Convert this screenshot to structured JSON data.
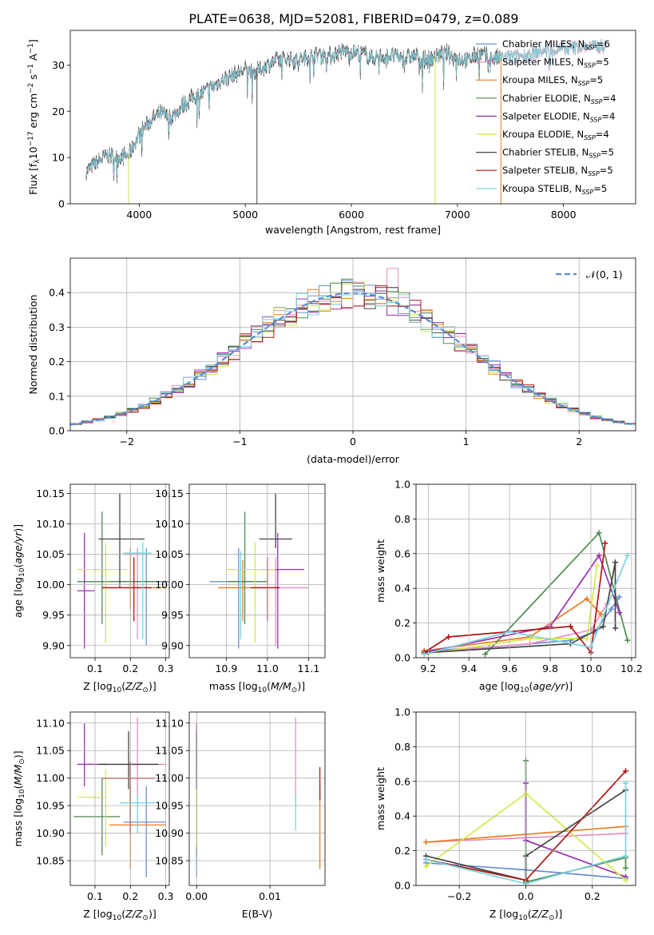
{
  "title": "PLATE=0638, MJD=52081, FIBERID=0479, z=0.089",
  "colors": {
    "ChMI": "#6a8fd6",
    "SaMI": "#e88fbf",
    "KrMI": "#e67e22",
    "ChEL": "#4d8a4d",
    "SaEL": "#9b2fb0",
    "KrEL": "#d6e84a",
    "ChST": "#444444",
    "SaST": "#b01515",
    "KrST": "#7ad5e0",
    "gauss": "#5b8ad8"
  },
  "chart_data": [
    {
      "id": "spectrum",
      "type": "line",
      "xlabel": "wavelength [Angstrom, rest frame]",
      "xlim": [
        3350,
        8680
      ],
      "ylim": [
        0,
        37.5
      ],
      "xticks": [
        4000,
        5000,
        6000,
        7000,
        8000
      ],
      "yticks": [
        0,
        10,
        20,
        30
      ],
      "observed_continuum": {
        "x": [
          3500,
          3600,
          3700,
          3800,
          3900,
          4000,
          4100,
          4200,
          4300,
          4400,
          4500,
          4600,
          4700,
          4800,
          4900,
          5000,
          5100,
          5200,
          5300,
          5400,
          5500,
          5600,
          5700,
          5800,
          5900,
          6000,
          6100,
          6200,
          6300,
          6400,
          6500,
          6600,
          6700,
          6800,
          6900,
          7000,
          7100,
          7200,
          7300,
          7400,
          7600,
          7800,
          8000,
          8200,
          8400
        ],
        "y": [
          7,
          9,
          10.5,
          10,
          10.5,
          15,
          18,
          19.5,
          18.5,
          21,
          23,
          24,
          25.5,
          27,
          28,
          29,
          28.5,
          30,
          31,
          31.5,
          31,
          32,
          32.5,
          32,
          33,
          33,
          32.5,
          31.5,
          32,
          32,
          31.5,
          32,
          31,
          32,
          32.5,
          31.5,
          31,
          32.5,
          31.5,
          31.5,
          32,
          33,
          33.5,
          34,
          34
        ]
      },
      "legend": [
        {
          "key": "ChMI",
          "label": "Chabrier MILES, N",
          "n": "6"
        },
        {
          "key": "SaMI",
          "label": "Salpeter MILES, N",
          "n": "5"
        },
        {
          "key": "KrMI",
          "label": "Kroupa MILES, N",
          "n": "5"
        },
        {
          "key": "ChEL",
          "label": "Chabrier ELODIE, N",
          "n": "4"
        },
        {
          "key": "SaEL",
          "label": "Salpeter ELODIE, N",
          "n": "4"
        },
        {
          "key": "KrEL",
          "label": "Kroupa ELODIE, N",
          "n": "4"
        },
        {
          "key": "ChST",
          "label": "Chabrier STELIB, N",
          "n": "5"
        },
        {
          "key": "SaST",
          "label": "Salpeter STELIB, N",
          "n": "5"
        },
        {
          "key": "KrST",
          "label": "Kroupa STELIB, N",
          "n": "5"
        }
      ]
    },
    {
      "id": "residuals",
      "type": "histogram",
      "xlabel": "(data-model)/error",
      "ylabel": "Normed distribution",
      "xlim": [
        -2.5,
        2.5
      ],
      "ylim": [
        0,
        0.5
      ],
      "xticks": [
        -2,
        -1,
        0,
        1,
        2
      ],
      "yticks": [
        0.0,
        0.1,
        0.2,
        0.3,
        0.4
      ],
      "legend": "𝒩(0, 1)",
      "bin_width": 0.1
    },
    {
      "id": "age_vs_Z",
      "type": "errorbar",
      "xlabel": "Z [log",
      "ylabel": "age  [log",
      "xlim": [
        0.03,
        0.31
      ],
      "ylim": [
        9.88,
        10.165
      ],
      "xticks": [
        0.1,
        0.2,
        0.3
      ],
      "yticks": [
        9.9,
        9.95,
        10.0,
        10.05,
        10.1,
        10.15
      ],
      "points": [
        {
          "key": "ChMI",
          "x": 0.245,
          "y": 10.005,
          "xerr": [
            0.15,
            0.31
          ],
          "yerr": [
            9.9,
            10.06
          ]
        },
        {
          "key": "SaMI",
          "x": 0.22,
          "y": 10.05,
          "xerr": [
            0.18,
            0.25
          ],
          "yerr": [
            9.91,
            10.06
          ]
        },
        {
          "key": "KrMI",
          "x": 0.2,
          "y": 9.995,
          "xerr": [
            0.12,
            0.3
          ],
          "yerr": [
            9.96,
            10.06
          ]
        },
        {
          "key": "ChEL",
          "x": 0.12,
          "y": 10.005,
          "xerr": [
            0.05,
            0.27
          ],
          "yerr": [
            9.935,
            10.12
          ]
        },
        {
          "key": "SaEL",
          "x": 0.07,
          "y": 9.99,
          "xerr": [
            0.05,
            0.1
          ],
          "yerr": [
            9.895,
            10.085
          ]
        },
        {
          "key": "KrEL",
          "x": 0.13,
          "y": 10.025,
          "xerr": [
            0.05,
            0.19
          ],
          "yerr": [
            9.905,
            10.07
          ]
        },
        {
          "key": "ChST",
          "x": 0.17,
          "y": 10.075,
          "xerr": [
            0.11,
            0.24
          ],
          "yerr": [
            9.995,
            10.15
          ]
        },
        {
          "key": "SaST",
          "x": 0.21,
          "y": 9.995,
          "xerr": [
            0.12,
            0.26
          ],
          "yerr": [
            9.94,
            10.045
          ]
        },
        {
          "key": "KrST",
          "x": 0.235,
          "y": 10.052,
          "xerr": [
            0.18,
            0.26
          ],
          "yerr": [
            9.91,
            10.07
          ]
        }
      ]
    },
    {
      "id": "age_vs_mass",
      "type": "errorbar",
      "xlabel": "mass [log",
      "xlim": [
        10.81,
        11.14
      ],
      "ylim": [
        9.88,
        10.165
      ],
      "xticks": [
        10.9,
        11.0,
        11.1
      ],
      "yticks": [
        9.9,
        9.95,
        10.0,
        10.05,
        10.1,
        10.15
      ],
      "points": [
        {
          "key": "ChMI",
          "x": 10.93,
          "y": 10.005,
          "xerr": [
            10.86,
            10.97
          ],
          "yerr": [
            9.895,
            10.06
          ]
        },
        {
          "key": "SaMI",
          "x": 11.02,
          "y": 9.995,
          "xerr": [
            10.98,
            11.1
          ],
          "yerr": [
            9.9,
            10.045
          ]
        },
        {
          "key": "KrMI",
          "x": 10.94,
          "y": 9.995,
          "xerr": [
            10.88,
            11.0
          ],
          "yerr": [
            9.94,
            10.04
          ]
        },
        {
          "key": "ChEL",
          "x": 10.945,
          "y": 10.005,
          "xerr": [
            10.9,
            11.0
          ],
          "yerr": [
            9.935,
            10.12
          ]
        },
        {
          "key": "SaEL",
          "x": 11.025,
          "y": 10.025,
          "xerr": [
            10.98,
            11.09
          ],
          "yerr": [
            9.895,
            10.085
          ]
        },
        {
          "key": "KrEL",
          "x": 10.97,
          "y": 10.025,
          "xerr": [
            10.9,
            11.02
          ],
          "yerr": [
            9.905,
            10.07
          ]
        },
        {
          "key": "ChST",
          "x": 11.02,
          "y": 10.075,
          "xerr": [
            10.98,
            11.06
          ],
          "yerr": [
            10.06,
            10.15
          ]
        },
        {
          "key": "SaST",
          "x": 11.0,
          "y": 9.995,
          "xerr": [
            10.96,
            11.03
          ],
          "yerr": [
            9.94,
            10.045
          ]
        },
        {
          "key": "KrST",
          "x": 10.935,
          "y": 10.05,
          "xerr": [
            10.92,
            10.95
          ],
          "yerr": [
            9.91,
            10.055
          ]
        }
      ]
    },
    {
      "id": "weight_vs_age",
      "type": "line",
      "xlabel": "age  [log",
      "ylabel": "mass weight",
      "xlim": [
        9.14,
        10.22
      ],
      "ylim": [
        0,
        1.0
      ],
      "xticks": [
        9.2,
        9.4,
        9.6,
        9.8,
        10.0,
        10.2
      ],
      "yticks": [
        0.0,
        0.2,
        0.4,
        0.6,
        0.8,
        1.0
      ],
      "series": [
        {
          "key": "ChMI",
          "x": [
            9.18,
            9.5,
            9.9,
            10.02,
            10.1,
            10.14
          ],
          "y": [
            0.04,
            0.06,
            0.1,
            0.15,
            0.28,
            0.35
          ]
        },
        {
          "key": "SaMI",
          "x": [
            9.18,
            9.7,
            10.0,
            10.08
          ],
          "y": [
            0.03,
            0.08,
            0.16,
            0.31
          ]
        },
        {
          "key": "KrMI",
          "x": [
            9.18,
            9.7,
            9.98,
            10.05
          ],
          "y": [
            0.04,
            0.12,
            0.34,
            0.25
          ]
        },
        {
          "key": "ChEL",
          "x": [
            9.48,
            10.04,
            10.18
          ],
          "y": [
            0.02,
            0.72,
            0.1
          ]
        },
        {
          "key": "SaEL",
          "x": [
            9.18,
            9.8,
            10.04,
            10.14
          ],
          "y": [
            0.03,
            0.18,
            0.59,
            0.26
          ]
        },
        {
          "key": "KrEL",
          "x": [
            9.18,
            9.7,
            9.98,
            10.03
          ],
          "y": [
            0.02,
            0.11,
            0.11,
            0.53
          ]
        },
        {
          "key": "ChST",
          "x": [
            9.2,
            9.9,
            10.06,
            10.12,
            10.12
          ],
          "y": [
            0.03,
            0.08,
            0.18,
            0.55,
            0.17
          ]
        },
        {
          "key": "SaST",
          "x": [
            9.18,
            9.3,
            9.9,
            10.0,
            10.07
          ],
          "y": [
            0.03,
            0.12,
            0.18,
            0.03,
            0.66
          ]
        },
        {
          "key": "KrST",
          "x": [
            9.18,
            9.6,
            10.0,
            10.18
          ],
          "y": [
            0.02,
            0.15,
            0.06,
            0.59
          ]
        }
      ]
    },
    {
      "id": "mass_vs_Z",
      "type": "errorbar",
      "xlabel": "Z [log",
      "ylabel": "mass [log",
      "xlim": [
        0.03,
        0.31
      ],
      "ylim": [
        10.805,
        11.12
      ],
      "xticks": [
        0.1,
        0.2,
        0.3
      ],
      "yticks": [
        10.85,
        10.9,
        10.95,
        11.0,
        11.05,
        11.1
      ],
      "points": [
        {
          "key": "ChMI",
          "x": 0.245,
          "y": 10.92,
          "xerr": [
            0.18,
            0.3
          ],
          "yerr": [
            10.82,
            10.985
          ]
        },
        {
          "key": "SaMI",
          "x": 0.22,
          "y": 11.025,
          "xerr": [
            0.12,
            0.3
          ],
          "yerr": [
            10.9,
            11.11
          ]
        },
        {
          "key": "KrMI",
          "x": 0.2,
          "y": 10.915,
          "xerr": [
            0.14,
            0.3
          ],
          "yerr": [
            10.835,
            10.985
          ]
        },
        {
          "key": "ChEL",
          "x": 0.12,
          "y": 10.93,
          "xerr": [
            0.04,
            0.17
          ],
          "yerr": [
            10.86,
            11.0
          ]
        },
        {
          "key": "SaEL",
          "x": 0.07,
          "y": 11.025,
          "xerr": [
            0.05,
            0.13
          ],
          "yerr": [
            10.985,
            11.1
          ]
        },
        {
          "key": "KrEL",
          "x": 0.13,
          "y": 10.965,
          "xerr": [
            0.05,
            0.13
          ],
          "yerr": [
            10.875,
            11.015
          ]
        },
        {
          "key": "ChST",
          "x": 0.195,
          "y": 11.025,
          "xerr": [
            0.11,
            0.28
          ],
          "yerr": [
            10.98,
            11.085
          ]
        },
        {
          "key": "SaST",
          "x": 0.2,
          "y": 11.0,
          "xerr": [
            0.12,
            0.27
          ],
          "yerr": [
            10.9,
            11.03
          ]
        },
        {
          "key": "KrST",
          "x": 0.22,
          "y": 10.955,
          "xerr": [
            0.17,
            0.27
          ],
          "yerr": [
            10.9,
            10.97
          ]
        }
      ]
    },
    {
      "id": "mass_vs_EBV",
      "type": "errorbar",
      "xlabel": "E(B-V)",
      "xlim": [
        -0.001,
        0.0175
      ],
      "ylim": [
        10.805,
        11.12
      ],
      "xticks": [
        0.0,
        0.01
      ],
      "yticks": [
        10.85,
        10.9,
        10.95,
        11.0,
        11.05,
        11.1
      ],
      "points": [
        {
          "key": "ChMI",
          "x": 0.0,
          "y": 10.92,
          "xerr": [
            0.0,
            0.0
          ],
          "yerr": [
            10.82,
            10.985
          ]
        },
        {
          "key": "SaMI",
          "x": 0.0135,
          "y": 11.025,
          "xerr": [
            0.0135,
            0.0135
          ],
          "yerr": [
            10.95,
            11.11
          ]
        },
        {
          "key": "KrMI",
          "x": 0.0168,
          "y": 10.915,
          "xerr": [
            0.0168,
            0.0168
          ],
          "yerr": [
            10.835,
            10.985
          ]
        },
        {
          "key": "ChEL",
          "x": 0.0,
          "y": 10.93,
          "xerr": [
            0.0,
            0.0
          ],
          "yerr": [
            10.86,
            11.0
          ]
        },
        {
          "key": "SaEL",
          "x": 0.0,
          "y": 11.025,
          "xerr": [
            0.0,
            0.0
          ],
          "yerr": [
            10.985,
            11.1
          ]
        },
        {
          "key": "KrEL",
          "x": 0.0,
          "y": 10.965,
          "xerr": [
            0.0,
            0.0
          ],
          "yerr": [
            10.875,
            11.015
          ]
        },
        {
          "key": "ChST",
          "x": 0.0,
          "y": 11.025,
          "xerr": [
            0.0,
            0.0
          ],
          "yerr": [
            10.98,
            11.085
          ]
        },
        {
          "key": "SaST",
          "x": 0.0168,
          "y": 11.0,
          "xerr": [
            0.0168,
            0.0168
          ],
          "yerr": [
            10.96,
            11.02
          ]
        },
        {
          "key": "KrST",
          "x": 0.0135,
          "y": 10.955,
          "xerr": [
            0.0135,
            0.0135
          ],
          "yerr": [
            10.905,
            10.97
          ]
        }
      ]
    },
    {
      "id": "weight_vs_Z",
      "type": "line",
      "xlabel": "Z [log",
      "ylabel": "mass weight",
      "xlim": [
        -0.33,
        0.33
      ],
      "ylim": [
        0,
        1.0
      ],
      "xticks": [
        -0.2,
        0.0,
        0.2
      ],
      "yticks": [
        0.0,
        0.2,
        0.4,
        0.6,
        0.8,
        1.0
      ],
      "series": [
        {
          "key": "ChMI",
          "x": [
            -0.3,
            0.0,
            0.3
          ],
          "y": [
            0.13,
            0.09,
            0.04
          ]
        },
        {
          "key": "SaMI",
          "x": [
            -0.3,
            0.3
          ],
          "y": [
            0.25,
            0.3
          ]
        },
        {
          "key": "KrMI",
          "x": [
            -0.3,
            0.3
          ],
          "y": [
            0.25,
            0.34
          ]
        },
        {
          "key": "ChEL",
          "x": [
            0.0,
            0.0,
            0.3,
            0.3
          ],
          "y": [
            0.72,
            0.02,
            0.16,
            0.1
          ]
        },
        {
          "key": "SaEL",
          "x": [
            0.0,
            0.0,
            0.3
          ],
          "y": [
            0.59,
            0.26,
            0.05
          ]
        },
        {
          "key": "KrEL",
          "x": [
            -0.3,
            0.0,
            0.3
          ],
          "y": [
            0.11,
            0.53,
            0.03
          ]
        },
        {
          "key": "ChST",
          "x": [
            -0.3,
            0.0,
            0.0,
            0.3
          ],
          "y": [
            0.17,
            0.03,
            0.17,
            0.55
          ]
        },
        {
          "key": "SaST",
          "x": [
            -0.3,
            0.0,
            0.3
          ],
          "y": [
            0.15,
            0.03,
            0.66
          ]
        },
        {
          "key": "KrST",
          "x": [
            -0.3,
            0.0,
            0.3,
            0.3
          ],
          "y": [
            0.15,
            0.01,
            0.17,
            0.59
          ]
        }
      ]
    }
  ]
}
